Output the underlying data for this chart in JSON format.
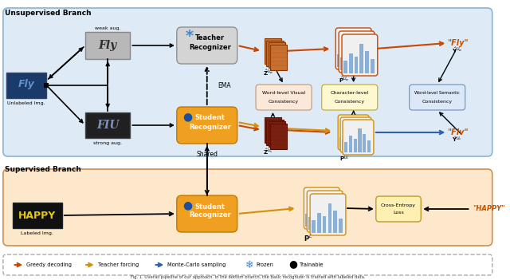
{
  "fig_width": 6.4,
  "fig_height": 3.51,
  "bg_color": "#ffffff",
  "unsup_label": "Unsupervised Branch",
  "sup_label": "Supervised Branch",
  "shared_label": "Shared",
  "ema_label": "EMA",
  "unsup_bg": "#deeaf5",
  "sup_bg": "#fde8cc",
  "teacher_bg": "#d4d4d4",
  "student_bg": "#f0a020",
  "wvc_bg": "#fce8d8",
  "clc_bg": "#fef8d0",
  "wsc_bg": "#dce8f8",
  "ce_bg": "#fef0b0",
  "orange_dark": "#c84800",
  "orange_arrow": "#d06010",
  "gold_arrow": "#d4900a",
  "blue_arrow": "#3060b0",
  "fly_text_color": "#c85000",
  "teacher_icon_color": "#4488cc",
  "unlabeled_img_bg": "#1a3a6a",
  "unlabeled_fly_color": "#6090c8",
  "weak_aug_bg": "#b8b8b8",
  "strong_aug_bg": "#202020",
  "happy_bg": "#101010",
  "happy_color": "#e8c800",
  "caption": "Fig. 1. Overall pipeline of our approach. In the bottom branch, the basic recognizer is trained with labeled data."
}
